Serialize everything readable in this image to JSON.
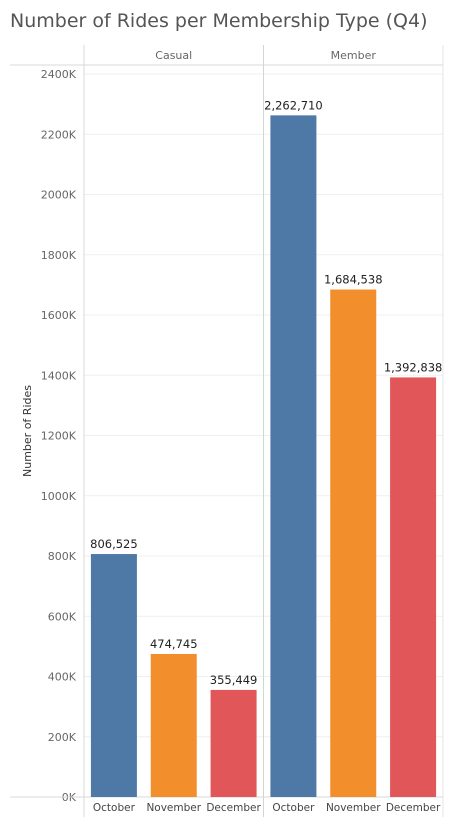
{
  "chart_data": {
    "type": "bar",
    "title": "Number of Rides per Membership Type (Q4)",
    "ylabel": "Number of Rides",
    "xlabel": "",
    "ylim": [
      0,
      2450000
    ],
    "yticks": [
      0,
      200000,
      400000,
      600000,
      800000,
      1000000,
      1200000,
      1400000,
      1600000,
      1800000,
      2000000,
      2200000,
      2400000
    ],
    "ytick_labels": [
      "0K",
      "200K",
      "400K",
      "600K",
      "800K",
      "1000K",
      "1200K",
      "1400K",
      "1600K",
      "1800K",
      "2000K",
      "2200K",
      "2400K"
    ],
    "categories": [
      "October",
      "November",
      "December"
    ],
    "category_colors": [
      "#4e79a7",
      "#f28e2b",
      "#e15759"
    ],
    "facets": [
      {
        "name": "Casual",
        "values": [
          806525,
          474745,
          355449
        ],
        "value_labels": [
          "806,525",
          "474,745",
          "355,449"
        ]
      },
      {
        "name": "Member",
        "values": [
          2262710,
          1684538,
          1392838
        ],
        "value_labels": [
          "2,262,710",
          "1,684,538",
          "1,392,838"
        ]
      }
    ]
  }
}
